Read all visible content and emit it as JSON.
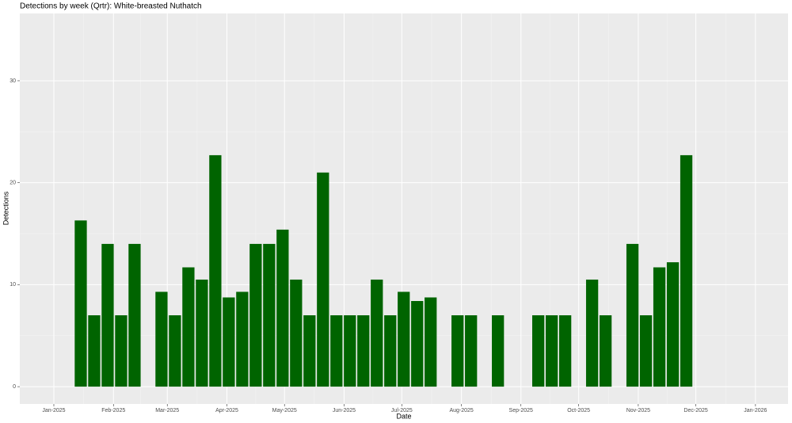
{
  "chart_data": {
    "type": "bar",
    "title": "Detections by week (Qrtr): White-breasted Nuthatch",
    "x_label": "Date",
    "y_label": "Detections",
    "x": [
      2,
      3,
      4,
      5,
      6,
      8,
      9,
      10,
      11,
      12,
      13,
      14,
      15,
      16,
      17,
      18,
      19,
      20,
      21,
      22,
      23,
      24,
      25,
      26,
      27,
      28,
      30,
      31,
      33,
      36,
      37,
      38,
      40,
      41,
      43,
      44,
      45,
      46,
      47
    ],
    "values": [
      16.3,
      7,
      14,
      7,
      14,
      9.3,
      7,
      11.7,
      10.5,
      22.7,
      8.75,
      9.3,
      14,
      14,
      15.4,
      10.5,
      7,
      21,
      7,
      7,
      7,
      10.5,
      7,
      9.3,
      8.4,
      8.75,
      7,
      7,
      7,
      7,
      7,
      7,
      10.5,
      7,
      14,
      7,
      11.7,
      12.2,
      22.7
    ],
    "color": "#006400",
    "xlim": [
      -2.53,
      54.56
    ],
    "xticks": [
      {
        "value": 0,
        "label": "Jan-2025"
      },
      {
        "value": 4.43,
        "label": "Feb-2025"
      },
      {
        "value": 8.43,
        "label": "Mar-2025"
      },
      {
        "value": 12.86,
        "label": "Apr-2025"
      },
      {
        "value": 17.14,
        "label": "May-2025"
      },
      {
        "value": 21.57,
        "label": "Jun-2025"
      },
      {
        "value": 25.86,
        "label": "Jul-2025"
      },
      {
        "value": 30.29,
        "label": "Aug-2025"
      },
      {
        "value": 34.71,
        "label": "Sep-2025"
      },
      {
        "value": 39,
        "label": "Oct-2025"
      },
      {
        "value": 43.43,
        "label": "Nov-2025"
      },
      {
        "value": 47.71,
        "label": "Dec-2025"
      },
      {
        "value": 52.14,
        "label": "Jan-2026"
      }
    ],
    "ylim": [
      -1.7,
      36.6
    ],
    "yticks": [
      0,
      10,
      20,
      30
    ],
    "grid": true
  }
}
